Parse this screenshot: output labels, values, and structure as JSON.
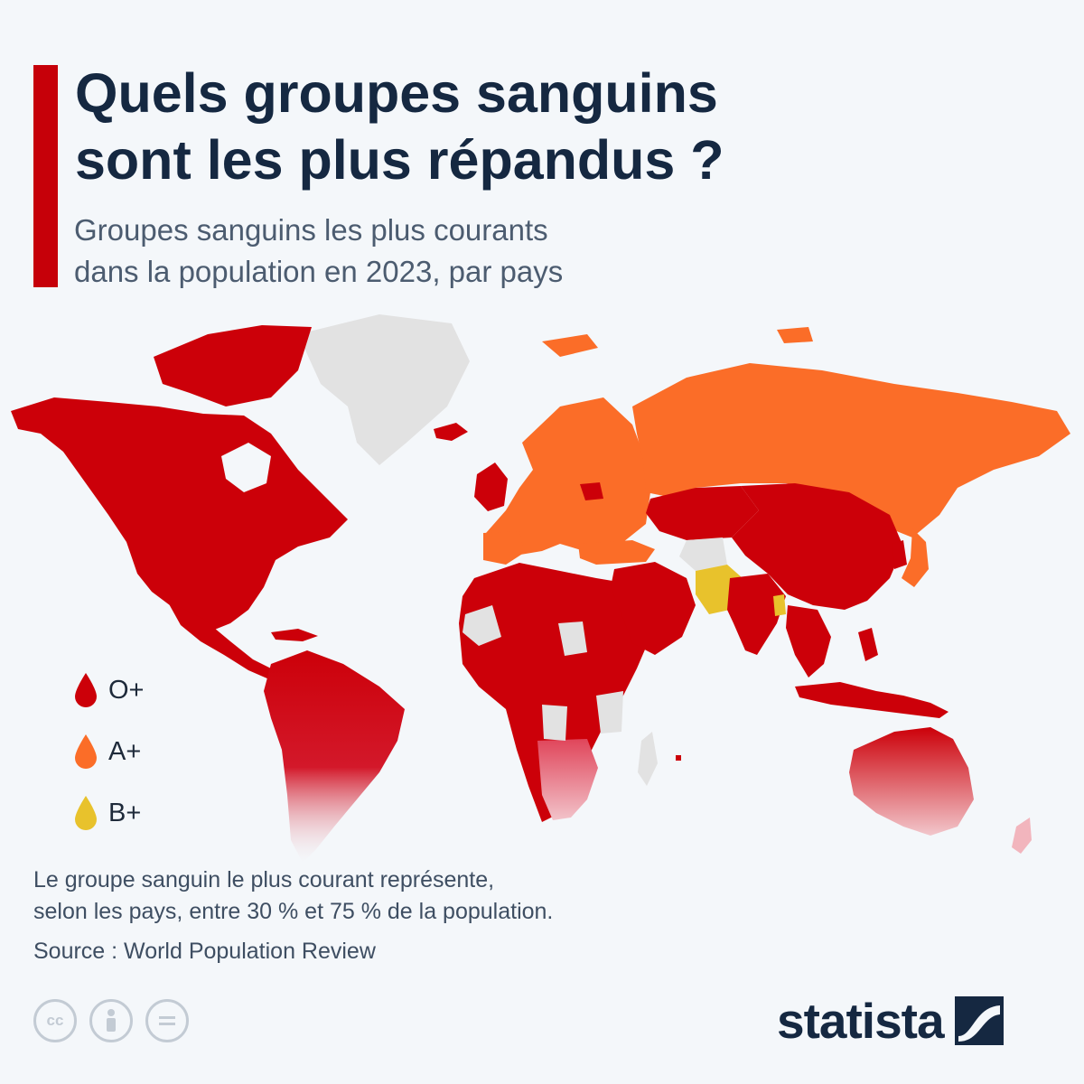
{
  "header": {
    "title_line1": "Quels groupes sanguins",
    "title_line2": "sont les plus répandus ?",
    "subtitle_line1": "Groupes sanguins les plus courants",
    "subtitle_line2": "dans la population en 2023, par pays"
  },
  "legend": [
    {
      "label": "O+",
      "color": "#cc0009",
      "icon": "blood-drop-icon"
    },
    {
      "label": "A+",
      "color": "#fb6d28",
      "icon": "blood-drop-icon"
    },
    {
      "label": "B+",
      "color": "#e8c22c",
      "icon": "blood-drop-icon"
    }
  ],
  "map_colors": {
    "O+": "#cc0009",
    "A+": "#fb6d28",
    "B+": "#e8c22c",
    "no_data": "#e2e2e2"
  },
  "map_regions": [
    {
      "region": "North America",
      "group": "O+"
    },
    {
      "region": "Central America",
      "group": "O+"
    },
    {
      "region": "South America",
      "group": "O+"
    },
    {
      "region": "Greenland",
      "group": "no_data"
    },
    {
      "region": "Iceland",
      "group": "O+"
    },
    {
      "region": "United Kingdom & Ireland",
      "group": "O+"
    },
    {
      "region": "Continental Europe",
      "group": "A+"
    },
    {
      "region": "Russia",
      "group": "A+"
    },
    {
      "region": "Turkey",
      "group": "A+"
    },
    {
      "region": "Japan",
      "group": "A+"
    },
    {
      "region": "Africa (most)",
      "group": "O+"
    },
    {
      "region": "Middle East",
      "group": "O+"
    },
    {
      "region": "Central Asia",
      "group": "O+"
    },
    {
      "region": "China",
      "group": "O+"
    },
    {
      "region": "India",
      "group": "O+"
    },
    {
      "region": "Pakistan",
      "group": "B+"
    },
    {
      "region": "Bangladesh",
      "group": "B+"
    },
    {
      "region": "Southeast Asia",
      "group": "O+"
    },
    {
      "region": "Australia",
      "group": "O+"
    },
    {
      "region": "New Zealand",
      "group": "O+"
    }
  ],
  "footer": {
    "note_line1": "Le groupe sanguin le plus courant représente,",
    "note_line2": "selon les pays, entre 30 % et 75 % de la population.",
    "source": "Source : World Population Review",
    "cc_icons": [
      "cc",
      "by",
      "nd"
    ],
    "brand": "statista"
  }
}
